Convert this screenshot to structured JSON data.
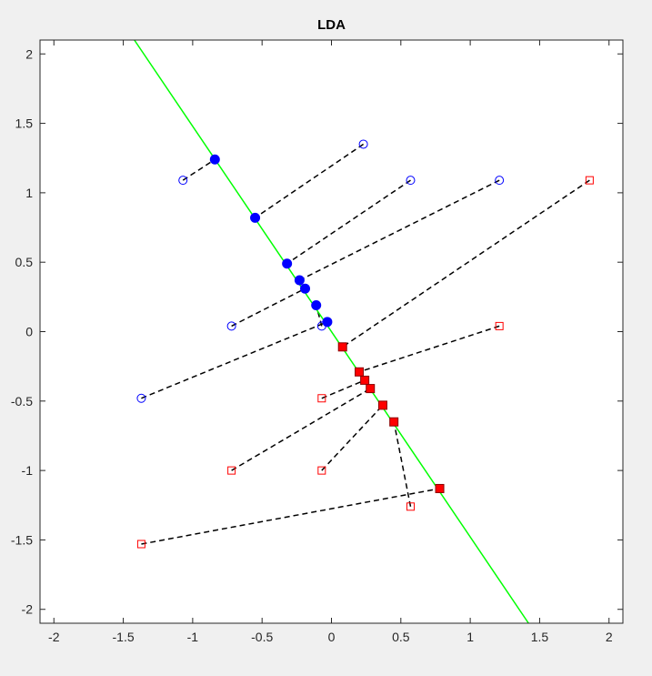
{
  "chart_data": {
    "type": "scatter",
    "title": "LDA",
    "xlabel": "",
    "ylabel": "",
    "xlim": [
      -2.1,
      2.1
    ],
    "ylim": [
      -2.1,
      2.1
    ],
    "xticks": [
      -2,
      -1.5,
      -1,
      -0.5,
      0,
      0.5,
      1,
      1.5,
      2
    ],
    "yticks": [
      -2,
      -1.5,
      -1,
      -0.5,
      0,
      0.5,
      1,
      1.5,
      2
    ],
    "xtick_labels": [
      "-2",
      "-1.5",
      "-1",
      "-0.5",
      "0",
      "0.5",
      "1",
      "1.5",
      "2"
    ],
    "ytick_labels": [
      "-2",
      "-1.5",
      "-1",
      "-0.5",
      "0",
      "0.5",
      "1",
      "1.5",
      "2"
    ],
    "grid": false,
    "projection_line": {
      "x": [
        -1.42,
        1.42
      ],
      "y": [
        2.1,
        -2.1
      ],
      "color": "#00ff00"
    },
    "series": [
      {
        "class": "A",
        "marker": "circle",
        "color": "#0000ff",
        "points": [
          [
            -1.07,
            1.09
          ],
          [
            0.23,
            1.35
          ],
          [
            0.57,
            1.09
          ],
          [
            1.21,
            1.09
          ],
          [
            -0.72,
            0.04
          ],
          [
            -0.07,
            0.04
          ],
          [
            -1.37,
            -0.48
          ]
        ],
        "projections": [
          [
            -0.84,
            1.24
          ],
          [
            -0.55,
            0.82
          ],
          [
            -0.32,
            0.49
          ],
          [
            -0.23,
            0.37
          ],
          [
            -0.19,
            0.31
          ],
          [
            -0.11,
            0.19
          ],
          [
            -0.03,
            0.07
          ]
        ]
      },
      {
        "class": "B",
        "marker": "square",
        "color": "#ff0000",
        "points": [
          [
            1.86,
            1.09
          ],
          [
            1.21,
            0.04
          ],
          [
            -0.07,
            -0.48
          ],
          [
            -0.72,
            -1.0
          ],
          [
            -0.07,
            -1.0
          ],
          [
            0.57,
            -1.26
          ],
          [
            -1.37,
            -1.53
          ]
        ],
        "projections": [
          [
            0.08,
            -0.11
          ],
          [
            0.2,
            -0.29
          ],
          [
            0.24,
            -0.35
          ],
          [
            0.28,
            -0.41
          ],
          [
            0.37,
            -0.53
          ],
          [
            0.45,
            -0.65
          ],
          [
            0.78,
            -1.13
          ]
        ]
      }
    ],
    "connector_style": "dashed-black"
  }
}
